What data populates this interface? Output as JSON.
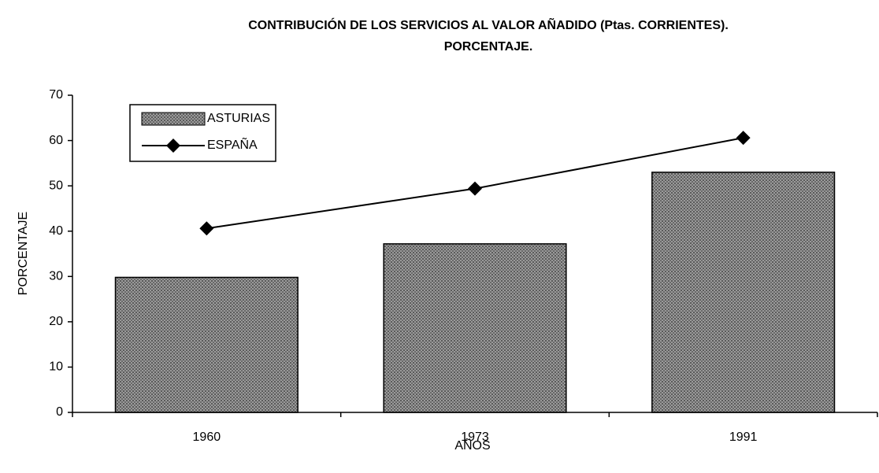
{
  "chart_data": {
    "type": "bar",
    "title": [
      "CONTRIBUCIÓN DE LOS SERVICIOS AL VALOR AÑADIDO (Ptas. CORRIENTES).",
      "PORCENTAJE."
    ],
    "x_label": "AÑOS",
    "y_label": "PORCENTAJE",
    "categories": [
      "1960",
      "1973",
      "1991"
    ],
    "series": [
      {
        "name": "ASTURIAS",
        "type": "bar",
        "color": "#7a7a7a",
        "values": [
          29.8,
          37.2,
          53
        ]
      },
      {
        "name": "ESPAÑA",
        "type": "line",
        "color": "#000000",
        "values": [
          40.6,
          49.4,
          60.6
        ]
      }
    ],
    "ylim": [
      0,
      70
    ],
    "yticks": [
      0,
      10,
      20,
      30,
      40,
      50,
      60,
      70
    ],
    "legend": "upper left"
  }
}
